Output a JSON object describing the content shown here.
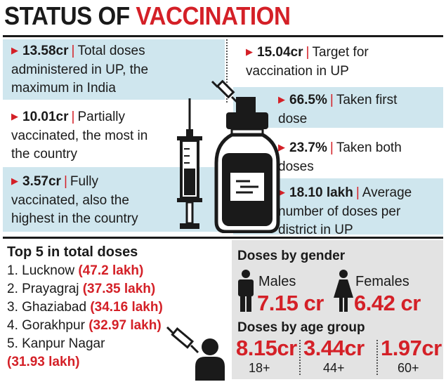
{
  "title": {
    "part1": "STATUS OF",
    "part2": "VACCINATION"
  },
  "left_stats": [
    {
      "num": "13.58cr",
      "text_lines": [
        "Total doses",
        "administered in UP, the",
        "maximum in India"
      ]
    },
    {
      "num": "10.01cr",
      "text_lines": [
        "Partially",
        "vaccinated, the most in",
        "the country"
      ]
    },
    {
      "num": "3.57cr",
      "text_lines": [
        "Fully",
        "vaccinated, also the",
        "highest in the country"
      ]
    }
  ],
  "right_stats": [
    {
      "num": "15.04cr",
      "text_lines": [
        "Target for",
        "vaccination in UP"
      ]
    },
    {
      "num": "66.5%",
      "text_lines": [
        "Taken first",
        "dose"
      ]
    },
    {
      "num": "23.7%",
      "text_lines": [
        "Taken both",
        "doses"
      ]
    },
    {
      "num": "18.10 lakh",
      "text_lines": [
        "Average",
        "number of doses per",
        "district in UP"
      ]
    }
  ],
  "top5": {
    "title": "Top 5 in total doses",
    "items": [
      {
        "name": "1. Lucknow",
        "value": "(47.2 lakh)"
      },
      {
        "name": "2. Prayagraj",
        "value": "(37.35 lakh)"
      },
      {
        "name": "3. Ghaziabad",
        "value": "(34.16 lakh)"
      },
      {
        "name": "4. Gorakhpur",
        "value": "(32.97 lakh)"
      },
      {
        "name": "5. Kanpur Nagar",
        "value": "(31.93 lakh)"
      }
    ]
  },
  "gender": {
    "title": "Doses by gender",
    "males_label": "Males",
    "males_value": "7.15 cr",
    "females_label": "Females",
    "females_value": "6.42 cr"
  },
  "age": {
    "title": "Doses by age group",
    "groups": [
      {
        "value": "8.15cr",
        "label": "18+"
      },
      {
        "value": "3.44cr",
        "label": "44+"
      },
      {
        "value": "1.97cr",
        "label": "60+"
      }
    ]
  },
  "colors": {
    "accent_red": "#d42027",
    "band_blue": "#cfe6ee",
    "panel_grey": "#e3e3e3",
    "ink": "#1a1a1a"
  },
  "icons": [
    "syringe-icon",
    "vaccine-vial-icon",
    "person-icon",
    "male-icon",
    "female-icon"
  ]
}
